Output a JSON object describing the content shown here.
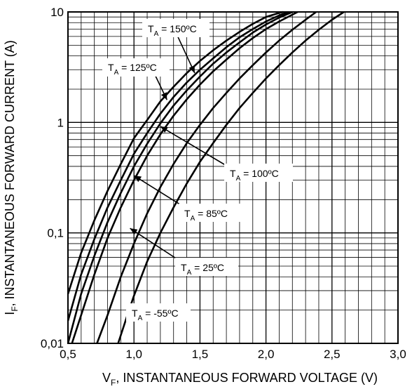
{
  "chart_data": {
    "type": "line",
    "xlabel_main": "V",
    "xlabel_sub": "F",
    "xlabel_rest": ", INSTANTANEOUS FORWARD VOLTAGE (V)",
    "ylabel_main": "I",
    "ylabel_sub": "F",
    "ylabel_rest": ", INSTANTANEOUS FORWARD CURRENT (A)",
    "xlim": [
      0.5,
      3.0
    ],
    "ylim": [
      0.01,
      10
    ],
    "yscale": "log",
    "grid": true,
    "legend": "none",
    "x_ticks": [
      "0,5",
      "1,0",
      "1,5",
      "2,0",
      "2,5",
      "3,0"
    ],
    "y_ticks": [
      "0,01",
      "0,1",
      "1",
      "10"
    ],
    "series": [
      {
        "name": "T_A = 150°C",
        "label_main": "T",
        "label_sub": "A",
        "label_rest": " = 150ºC",
        "x": [
          0.5,
          0.6,
          0.7,
          0.8,
          0.9,
          1.0,
          1.1,
          1.2,
          1.3,
          1.4,
          1.5,
          1.6,
          1.7,
          1.8,
          1.9,
          2.0,
          2.1,
          2.13
        ],
        "y": [
          0.028,
          0.066,
          0.13,
          0.24,
          0.42,
          0.72,
          1.05,
          1.55,
          2.1,
          2.8,
          3.6,
          4.5,
          5.5,
          6.6,
          7.8,
          9.0,
          9.8,
          10
        ]
      },
      {
        "name": "T_A = 125°C",
        "label_main": "T",
        "label_sub": "A",
        "label_rest": " = 125ºC",
        "x": [
          0.5,
          0.6,
          0.7,
          0.8,
          0.9,
          1.0,
          1.1,
          1.2,
          1.3,
          1.4,
          1.5,
          1.6,
          1.7,
          1.8,
          1.9,
          2.0,
          2.1,
          2.17
        ],
        "y": [
          0.016,
          0.042,
          0.088,
          0.17,
          0.3,
          0.52,
          0.8,
          1.2,
          1.7,
          2.3,
          3.0,
          3.8,
          4.8,
          5.9,
          7.0,
          8.2,
          9.3,
          10
        ]
      },
      {
        "name": "T_A = 100°C",
        "label_main": "T",
        "label_sub": "A",
        "label_rest": " = 100ºC",
        "x": [
          0.5,
          0.6,
          0.7,
          0.8,
          0.9,
          1.0,
          1.1,
          1.2,
          1.3,
          1.4,
          1.5,
          1.6,
          1.7,
          1.8,
          1.9,
          2.0,
          2.1,
          2.2
        ],
        "y": [
          0.01,
          0.028,
          0.062,
          0.125,
          0.23,
          0.4,
          0.64,
          0.98,
          1.42,
          1.95,
          2.6,
          3.4,
          4.3,
          5.3,
          6.5,
          7.7,
          8.9,
          10
        ]
      },
      {
        "name": "T_A = 85°C",
        "label_main": "T",
        "label_sub": "A",
        "label_rest": " = 85ºC",
        "x": [
          0.53,
          0.6,
          0.7,
          0.8,
          0.9,
          1.0,
          1.1,
          1.2,
          1.3,
          1.4,
          1.5,
          1.6,
          1.7,
          1.8,
          1.9,
          2.0,
          2.1,
          2.24
        ],
        "y": [
          0.01,
          0.018,
          0.042,
          0.09,
          0.17,
          0.3,
          0.5,
          0.78,
          1.15,
          1.62,
          2.2,
          2.9,
          3.7,
          4.7,
          5.8,
          7.0,
          8.2,
          10
        ]
      },
      {
        "name": "T_A = 25°C",
        "label_main": "T",
        "label_sub": "A",
        "label_rest": " = 25ºC",
        "x": [
          0.72,
          0.8,
          0.9,
          1.0,
          1.1,
          1.2,
          1.3,
          1.4,
          1.5,
          1.6,
          1.7,
          1.8,
          1.9,
          2.0,
          2.1,
          2.2,
          2.3,
          2.38
        ],
        "y": [
          0.01,
          0.018,
          0.04,
          0.08,
          0.15,
          0.26,
          0.42,
          0.65,
          0.95,
          1.35,
          1.85,
          2.5,
          3.3,
          4.3,
          5.5,
          6.9,
          8.5,
          10
        ]
      },
      {
        "name": "T_A = -55°C",
        "label_main": "T",
        "label_sub": "A",
        "label_rest": " = -55ºC",
        "x": [
          0.88,
          0.95,
          1.0,
          1.1,
          1.2,
          1.3,
          1.4,
          1.5,
          1.6,
          1.7,
          1.8,
          1.9,
          2.0,
          2.1,
          2.2,
          2.3,
          2.4,
          2.5,
          2.59
        ],
        "y": [
          0.01,
          0.018,
          0.027,
          0.055,
          0.1,
          0.17,
          0.28,
          0.44,
          0.65,
          0.95,
          1.35,
          1.85,
          2.5,
          3.3,
          4.3,
          5.5,
          6.9,
          8.5,
          10
        ]
      }
    ],
    "annotations": [
      {
        "series": 0,
        "point_x": 1.46,
        "point_y": 2.8
      },
      {
        "series": 1,
        "point_x": 1.25,
        "point_y": 1.6
      },
      {
        "series": 2,
        "point_x": 1.2,
        "point_y": 0.92
      },
      {
        "series": 3,
        "point_x": 1.0,
        "point_y": 0.33
      },
      {
        "series": 4,
        "point_x": 0.97,
        "point_y": 0.11
      },
      {
        "series": 5,
        "point_x": null,
        "point_y": null
      }
    ]
  }
}
